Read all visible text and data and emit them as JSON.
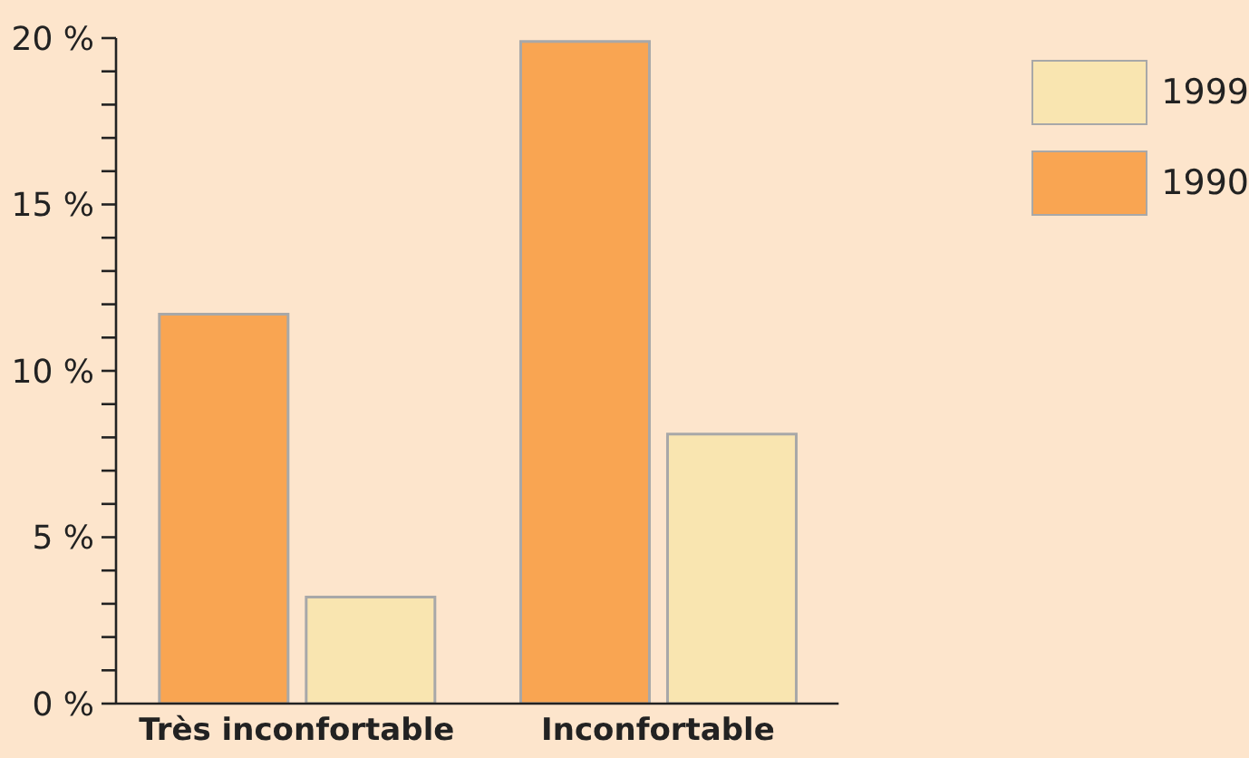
{
  "chart_data": {
    "type": "bar",
    "categories": [
      "Très inconfortable",
      "Inconfortable"
    ],
    "series": [
      {
        "name": "1990",
        "color": "#f9a552",
        "values": [
          11.7,
          19.9
        ]
      },
      {
        "name": "1999",
        "color": "#f9e5b0",
        "values": [
          3.2,
          8.1
        ]
      }
    ],
    "ylim": [
      0,
      20
    ],
    "yticks": [
      {
        "value": 0,
        "label": "0 %"
      },
      {
        "value": 1,
        "label": null
      },
      {
        "value": 2,
        "label": null
      },
      {
        "value": 3,
        "label": null
      },
      {
        "value": 4,
        "label": null
      },
      {
        "value": 5,
        "label": "5 %"
      },
      {
        "value": 6,
        "label": null
      },
      {
        "value": 7,
        "label": null
      },
      {
        "value": 8,
        "label": null
      },
      {
        "value": 9,
        "label": null
      },
      {
        "value": 10,
        "label": "10 %"
      },
      {
        "value": 11,
        "label": null
      },
      {
        "value": 12,
        "label": null
      },
      {
        "value": 13,
        "label": null
      },
      {
        "value": 14,
        "label": null
      },
      {
        "value": 15,
        "label": "15 %"
      },
      {
        "value": 16,
        "label": null
      },
      {
        "value": 17,
        "label": null
      },
      {
        "value": 18,
        "label": null
      },
      {
        "value": 19,
        "label": null
      },
      {
        "value": 20,
        "label": "20 %"
      }
    ],
    "grid": false,
    "legend": "top right"
  }
}
